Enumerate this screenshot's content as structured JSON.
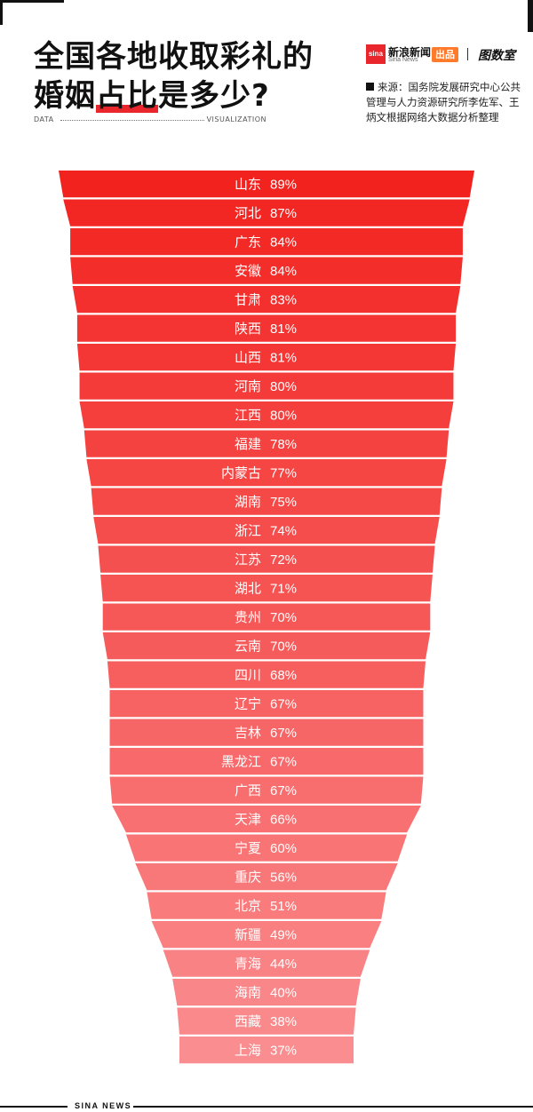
{
  "header": {
    "title_line1": "全国各地收取彩礼的",
    "title_line2_pre": "婚姻",
    "title_line2_highlight": "占比",
    "title_line2_post": "是多少?",
    "data_label": "DATA",
    "visualization_label": "VISUALIZATION"
  },
  "brand": {
    "logo_text": "sina",
    "name_cn": "新浪新闻",
    "name_en": "Sina News",
    "produced": "出品",
    "studio": "图数室"
  },
  "source": {
    "text": "来源：国务院发展研究中心公共管理与人力资源研究所李佐军、王炳文根据网络大数据分析整理"
  },
  "footer": {
    "text": "SINA NEWS"
  },
  "colors": {
    "top_bar": "#f2221f",
    "bottom_bar": "#fa8d8f",
    "accent": "#e8262b"
  },
  "chart_data": {
    "type": "bar",
    "categories": [
      "山东",
      "河北",
      "广东",
      "安徽",
      "甘肃",
      "陕西",
      "山西",
      "河南",
      "江西",
      "福建",
      "内蒙古",
      "湖南",
      "浙江",
      "江苏",
      "湖北",
      "贵州",
      "云南",
      "四川",
      "辽宁",
      "吉林",
      "黑龙江",
      "广西",
      "天津",
      "宁夏",
      "重庆",
      "北京",
      "新疆",
      "青海",
      "海南",
      "西藏",
      "上海"
    ],
    "values": [
      89,
      87,
      84,
      84,
      83,
      81,
      81,
      80,
      80,
      78,
      77,
      75,
      74,
      72,
      71,
      70,
      70,
      68,
      67,
      67,
      67,
      67,
      66,
      60,
      56,
      51,
      49,
      44,
      40,
      38,
      37
    ],
    "labels": [
      "89%",
      "87%",
      "84%",
      "84%",
      "83%",
      "81%",
      "81%",
      "80%",
      "80%",
      "78%",
      "77%",
      "75%",
      "74%",
      "72%",
      "71%",
      "70%",
      "70%",
      "68%",
      "67%",
      "67%",
      "67%",
      "67%",
      "66%",
      "60%",
      "56%",
      "51%",
      "49%",
      "44%",
      "40%",
      "38%",
      "37%"
    ],
    "orientation": "funnel"
  }
}
